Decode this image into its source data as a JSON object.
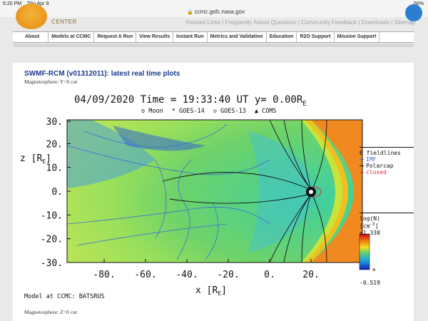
{
  "status": {
    "time": "5:20 PM",
    "date": "Thu Apr 9",
    "battery": "66%"
  },
  "browser": {
    "url": "ccmc.gsfc.nasa.gov"
  },
  "site": {
    "logo_text": "CENTER",
    "top_links": "Related Links | Frequently Asked Questions | Community Feedback | Downloads | Sitemap"
  },
  "nav": [
    "About",
    "Models at CCMC",
    "Request A Run",
    "View Results",
    "Instant Run",
    "Metrics and Validation",
    "Education",
    "R2O Support",
    "Mission Support"
  ],
  "page": {
    "title": "SWMF-RCM (v01312011): latest real time plots",
    "subtitle": "Magnetosphere: Y=0 cut",
    "footer_model": "Model at CCMC: BATSRUS",
    "next_section": "Magnetosphere: Z=0 cut"
  },
  "plot": {
    "title": "04/09/2020 Time = 19:33:40 UT y= 0.00R",
    "title_sub": "E",
    "markers": [
      "o Moon",
      "* GOES-14",
      "◇ GOES-13",
      "▲ COMS"
    ],
    "z_label": "z [R",
    "z_label_sub": "E",
    "z_label_end": "]",
    "x_label": "x [R",
    "x_label_sub": "E",
    "x_label_end": "]",
    "y_ticks": [
      "30.",
      "20.",
      "10.",
      "0.",
      "-10.",
      "-20.",
      "-30."
    ],
    "x_ticks": [
      "-80.",
      "-60.",
      "-40.",
      "-20.",
      "0.",
      "20."
    ],
    "fieldlines_title": "B fieldlines",
    "fieldlines": [
      {
        "label": "IMF",
        "color": "#3b6fd6"
      },
      {
        "label": "Polarcap",
        "color": "#111111"
      },
      {
        "label": "closed",
        "color": "#e0243a"
      }
    ],
    "colorbar_title": "log(N)",
    "colorbar_unit": "[cm",
    "colorbar_unit_sup": "-3",
    "colorbar_unit_end": "]",
    "colorbar_max": "+1.338",
    "colorbar_mid": "a",
    "colorbar_min": "-0.519"
  }
}
